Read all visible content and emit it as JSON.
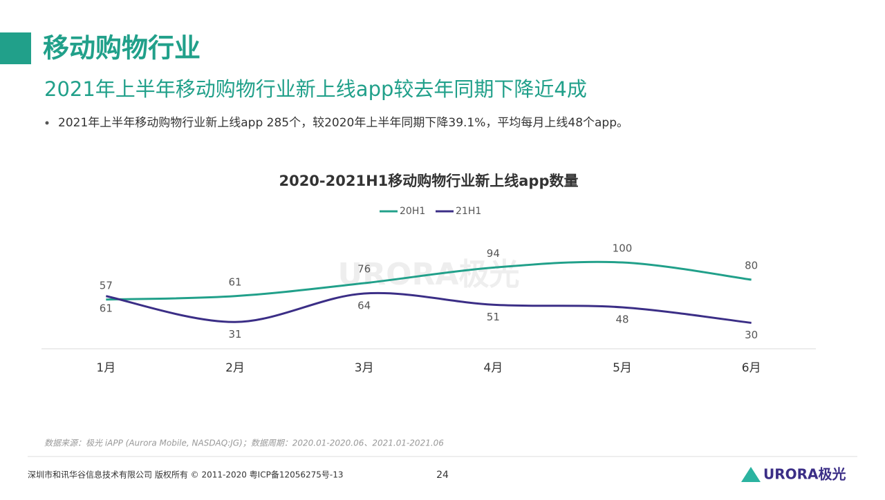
{
  "header": {
    "title": "移动购物行业",
    "subtitle": "2021年上半年移动购物行业新上线app较去年同期下降近4成",
    "bullet": "2021年上半年移动购物行业新上线app  285个，较2020年上半年同期下降39.1%，平均每月上线48个app。"
  },
  "chart_data": {
    "type": "line",
    "title": "2020-2021H1移动购物行业新上线app数量",
    "categories": [
      "1月",
      "2月",
      "3月",
      "4月",
      "5月",
      "6月"
    ],
    "series": [
      {
        "name": "20H1",
        "color": "#21a08a",
        "values": [
          57,
          61,
          76,
          94,
          100,
          80
        ]
      },
      {
        "name": "21H1",
        "color": "#3b2e86",
        "values": [
          61,
          31,
          64,
          51,
          48,
          30
        ]
      }
    ],
    "ylim": [
      0,
      140
    ],
    "legend": "top",
    "smooth": true
  },
  "footer": {
    "source": "数据来源：极光 iAPP (Aurora Mobile, NASDAQ:JG)；数据周期：2020.01-2020.06、2021.01-2021.06",
    "company": "深圳市和讯华谷信息技术有限公司  版权所有 © 2011-2020 粤ICP备12056275号-13",
    "page": "24",
    "logo": "URORA极光"
  }
}
